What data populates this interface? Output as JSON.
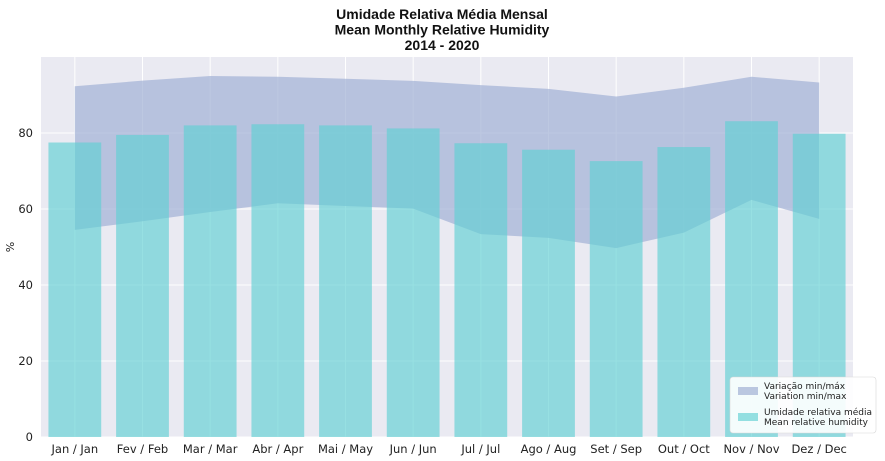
{
  "chart_data": {
    "type": "bar",
    "title": [
      "Umidade Relativa Média Mensal",
      "Mean Monthly Relative Humidity",
      "2014 - 2020"
    ],
    "xlabel": "",
    "ylabel": "%",
    "ylim": [
      0,
      100
    ],
    "yticks": [
      0,
      20,
      40,
      60,
      80
    ],
    "grid": true,
    "legend_position": "lower-right",
    "categories": [
      "Jan / Jan",
      "Fev / Feb",
      "Mar / Mar",
      "Abr / Apr",
      "Mai / May",
      "Jun / Jun",
      "Jul / Jul",
      "Ago / Aug",
      "Set / Sep",
      "Out / Oct",
      "Nov / Nov",
      "Dez / Dec"
    ],
    "series": [
      {
        "name": "Umidade relativa média\nMean relative humidity",
        "kind": "bar",
        "color": "#5fcfd3",
        "values": [
          77.5,
          79.5,
          82.0,
          82.3,
          82.0,
          81.2,
          77.3,
          75.6,
          72.6,
          76.3,
          83.1,
          79.8
        ]
      },
      {
        "name": "Variação min/máx\nVariation min/max",
        "kind": "area",
        "color": "#a3b3d6",
        "max": [
          92.3,
          93.8,
          95.0,
          94.8,
          94.3,
          93.7,
          92.6,
          91.6,
          89.6,
          91.9,
          94.8,
          93.3
        ],
        "min": [
          54.5,
          56.8,
          59.2,
          61.5,
          60.8,
          60.1,
          53.4,
          52.4,
          49.7,
          53.8,
          62.4,
          57.4
        ]
      }
    ]
  },
  "colors": {
    "background": "#eaeaf2",
    "grid": "#ffffff",
    "bar": "#5fcfd3",
    "area": "#a3b3d6"
  }
}
